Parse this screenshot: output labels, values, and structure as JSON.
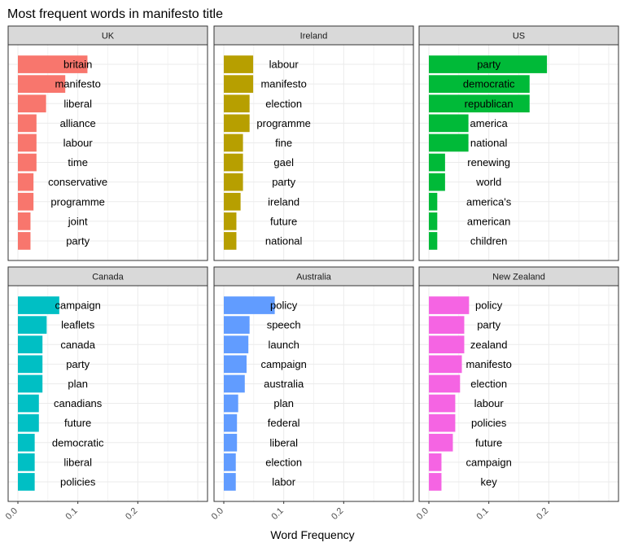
{
  "chart_data": {
    "type": "bar",
    "orientation": "horizontal",
    "title": "Most frequent words in manifesto title",
    "xlabel": "Word Frequency",
    "xlim": [
      0,
      0.3
    ],
    "x_ticks": [
      0.0,
      0.1,
      0.2
    ],
    "x_tick_labels": [
      "0.0",
      "0.1",
      "0.2"
    ],
    "grid": true,
    "facets": [
      {
        "name": "UK",
        "color": "#F8766D",
        "categories": [
          "britain",
          "manifesto",
          "liberal",
          "alliance",
          "labour",
          "time",
          "conservative",
          "programme",
          "joint",
          "party"
        ],
        "values": [
          0.116,
          0.079,
          0.047,
          0.031,
          0.031,
          0.031,
          0.026,
          0.026,
          0.021,
          0.021
        ]
      },
      {
        "name": "Ireland",
        "color": "#B79F00",
        "categories": [
          "labour",
          "manifesto",
          "election",
          "programme",
          "fine",
          "gael",
          "party",
          "ireland",
          "future",
          "national"
        ],
        "values": [
          0.049,
          0.049,
          0.043,
          0.043,
          0.032,
          0.032,
          0.032,
          0.028,
          0.021,
          0.021
        ]
      },
      {
        "name": "US",
        "color": "#00BA38",
        "categories": [
          "party",
          "democratic",
          "republican",
          "america",
          "national",
          "renewing",
          "world",
          "america's",
          "american",
          "children"
        ],
        "values": [
          0.197,
          0.168,
          0.168,
          0.066,
          0.066,
          0.027,
          0.027,
          0.014,
          0.014,
          0.014
        ]
      },
      {
        "name": "Canada",
        "color": "#00BFC4",
        "categories": [
          "campaign",
          "leaflets",
          "canada",
          "party",
          "plan",
          "canadians",
          "future",
          "democratic",
          "liberal",
          "policies"
        ],
        "values": [
          0.069,
          0.048,
          0.041,
          0.041,
          0.041,
          0.035,
          0.035,
          0.028,
          0.028,
          0.028
        ]
      },
      {
        "name": "Australia",
        "color": "#619CFF",
        "categories": [
          "policy",
          "speech",
          "launch",
          "campaign",
          "australia",
          "plan",
          "federal",
          "liberal",
          "election",
          "labor"
        ],
        "values": [
          0.085,
          0.043,
          0.041,
          0.038,
          0.035,
          0.024,
          0.022,
          0.022,
          0.02,
          0.02
        ]
      },
      {
        "name": "New Zealand",
        "color": "#F564E3",
        "categories": [
          "policy",
          "party",
          "zealand",
          "manifesto",
          "election",
          "labour",
          "policies",
          "future",
          "campaign",
          "key"
        ],
        "values": [
          0.067,
          0.059,
          0.059,
          0.055,
          0.052,
          0.044,
          0.044,
          0.04,
          0.021,
          0.021
        ]
      }
    ]
  }
}
